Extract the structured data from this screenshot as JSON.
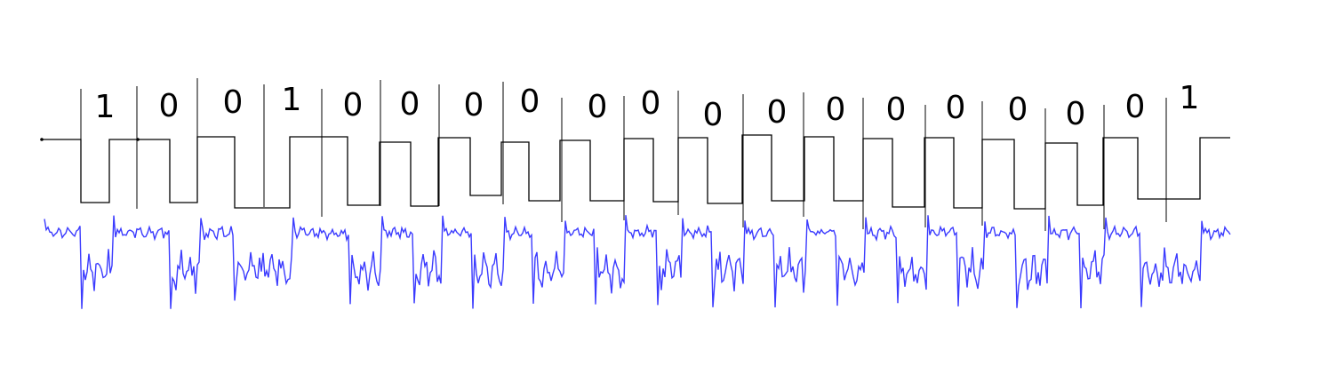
{
  "diagram": {
    "bits": [
      "1",
      "0",
      "0",
      "1",
      "0",
      "0",
      "0",
      "0",
      "0",
      "0",
      "0",
      "0",
      "0",
      "0",
      "0",
      "0",
      "0",
      "0",
      "1"
    ],
    "colors": {
      "digital_signal": "#000000",
      "dividers": "#000000",
      "analog_signal": "#3b3bff"
    }
  }
}
